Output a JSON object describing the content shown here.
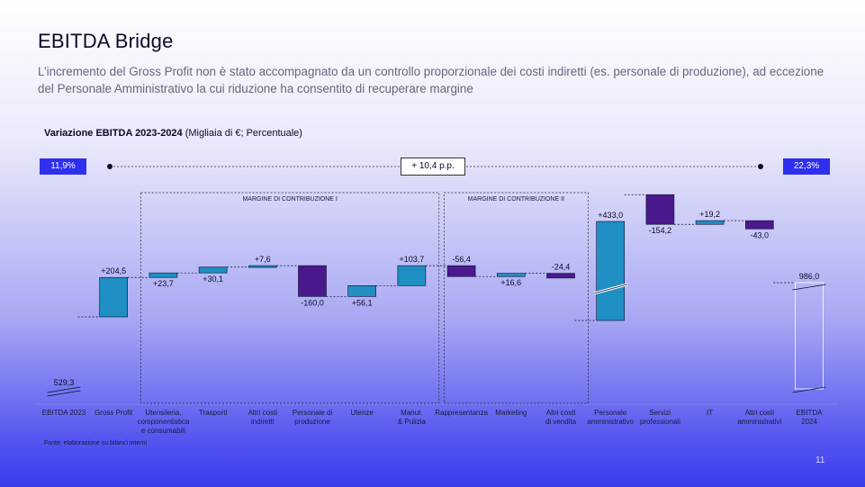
{
  "page": {
    "title": "EBITDA Bridge",
    "subtitle": "L’incremento del Gross Profit non è stato accompagnato da un controllo proporzionale dei costi indiretti (es. personale di produzione), ad eccezione del Personale Amministrativo la cui riduzione ha consentito di recuperare margine",
    "chart_title_bold": "Variazione EBITDA 2023-2024",
    "chart_title_rest": " (Migliaia di €; Percentuale)",
    "margin_start": "11,9%",
    "margin_end": "22,3%",
    "margin_delta": "+ 10,4 p.p.",
    "source": "Fonte: elaborazione su bilanci interni",
    "page_number": "11"
  },
  "chart_data": {
    "type": "bar",
    "subtype": "waterfall",
    "title": "Variazione EBITDA 2023-2024 (Migliaia di €; Percentuale)",
    "unit": "Migliaia di €",
    "start": {
      "label": "EBITDA 2023",
      "value": 529.3,
      "value_label": "529,3"
    },
    "end": {
      "label": "EBITDA 2024",
      "value": 986.0,
      "value_label": "986,0"
    },
    "steps": [
      {
        "label": "Gross Profit",
        "value": 204.5,
        "value_label": "+204,5"
      },
      {
        "label": "Utensileria, componentistica e consumabili",
        "value": 23.7,
        "value_label": "+23,7"
      },
      {
        "label": "Trasporti",
        "value": 30.1,
        "value_label": "+30,1"
      },
      {
        "label": "Altri costi indiretti",
        "value": 7.6,
        "value_label": "+7,6"
      },
      {
        "label": "Personale di produzione",
        "value": -160.0,
        "value_label": "-160,0"
      },
      {
        "label": "Utenze",
        "value": 56.1,
        "value_label": "+56,1"
      },
      {
        "label": "Manut. & Pulizia",
        "value": 103.7,
        "value_label": "+103,7"
      },
      {
        "label": "Rappresentanza",
        "value": -56.4,
        "value_label": "-56,4"
      },
      {
        "label": "Marketing",
        "value": 16.6,
        "value_label": "+16,6"
      },
      {
        "label": "Altri costi di vendita",
        "value": -24.4,
        "value_label": "-24,4"
      },
      {
        "label": "Personale amministrativo",
        "value": 433.0,
        "value_label": "+433,0"
      },
      {
        "label": "Servizi professionali",
        "value": -154.2,
        "value_label": "-154,2"
      },
      {
        "label": "IT",
        "value": 19.2,
        "value_label": "+19,2"
      },
      {
        "label": "Altri costi amministrativi",
        "value": -43.0,
        "value_label": "-43,0"
      }
    ],
    "groups": [
      {
        "label": "MARGINE DI CONTRIBUZIONE I"
      },
      {
        "label": "MARGINE DI CONTRIBUZIONE II"
      }
    ],
    "colors": {
      "positive": "#1f8fc4",
      "negative": "#4a1a8c",
      "connector": "#0b0b2a"
    }
  }
}
